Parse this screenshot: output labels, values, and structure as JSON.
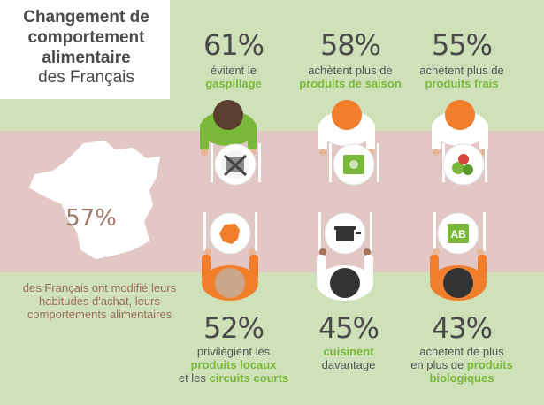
{
  "title": {
    "line1": "Changement de comportement alimentaire",
    "line2": "des Français"
  },
  "top_stats": [
    {
      "percent": "61%",
      "line1": "évitent le",
      "highlight": "gaspillage"
    },
    {
      "percent": "58%",
      "line1": "achètent plus de",
      "highlight": "produits de saison"
    },
    {
      "percent": "55%",
      "line1": "achètent plus de",
      "highlight": "produits frais"
    }
  ],
  "bottom_stats": [
    {
      "percent": "52%",
      "line1": "privilègient les",
      "highlight1": "produits locaux",
      "mid": "et les",
      "highlight2": "circuits courts"
    },
    {
      "percent": "45%",
      "highlight": "cuisinent",
      "line2": "davantage"
    },
    {
      "percent": "43%",
      "line1": "achètent de plus",
      "line2a": "en plus de",
      "highlight1": "produits",
      "highlight2": "biologiques"
    }
  ],
  "map": {
    "percent": "57%",
    "text": "des Français ont modifié leurs habitudes d'achat, leurs comportements alimentaires"
  },
  "colors": {
    "background": "#cfe1b9",
    "band": "#e2c7c4",
    "highlight": "#7ab83a",
    "orange": "#f07e2b",
    "green_shirt": "#7ab83a"
  },
  "plate_icons": [
    "no-food-icon",
    "seasonal-produce-bag-icon",
    "fresh-vegetables-icon",
    "france-map-icon",
    "cooking-pot-icon",
    "organic-ab-label-icon"
  ]
}
